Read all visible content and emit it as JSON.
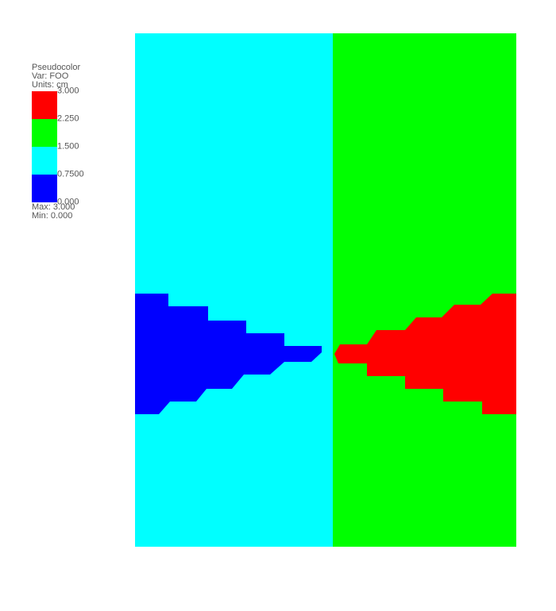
{
  "legend": {
    "title": "Pseudocolor",
    "var_label": "Var: FOO",
    "units_label": "Units: cm",
    "ticks": [
      "3.000",
      "2.250",
      "1.500",
      "0.7500",
      "0.000"
    ],
    "max_label": "Max: 3.000",
    "min_label": "Min: 0.000"
  },
  "chart_data": {
    "type": "heatmap",
    "title": "",
    "xlabel": "",
    "ylabel": "",
    "variable": "FOO",
    "units": "cm",
    "range": [
      0.0,
      3.0
    ],
    "colormap": {
      "bands": [
        {
          "range": [
            2.25,
            3.0
          ],
          "color": "#ff0000"
        },
        {
          "range": [
            1.5,
            2.25
          ],
          "color": "#00ff00"
        },
        {
          "range": [
            0.75,
            1.5
          ],
          "color": "#00ffff"
        },
        {
          "range": [
            0.0,
            0.75
          ],
          "color": "#0000ff"
        }
      ]
    },
    "regions": {
      "left_background": {
        "value_band": "0.75-1.5",
        "color": "#00ffff"
      },
      "right_background": {
        "value_band": "1.5-2.25",
        "color": "#00ff00"
      },
      "left_wedge": {
        "value_band": "0.0-0.75",
        "color": "#0000ff"
      },
      "right_wedge": {
        "value_band": "2.25-3.0",
        "color": "#ff0000"
      }
    },
    "max": 3.0,
    "min": 0.0,
    "grid": false,
    "legend_position": "top-left"
  }
}
